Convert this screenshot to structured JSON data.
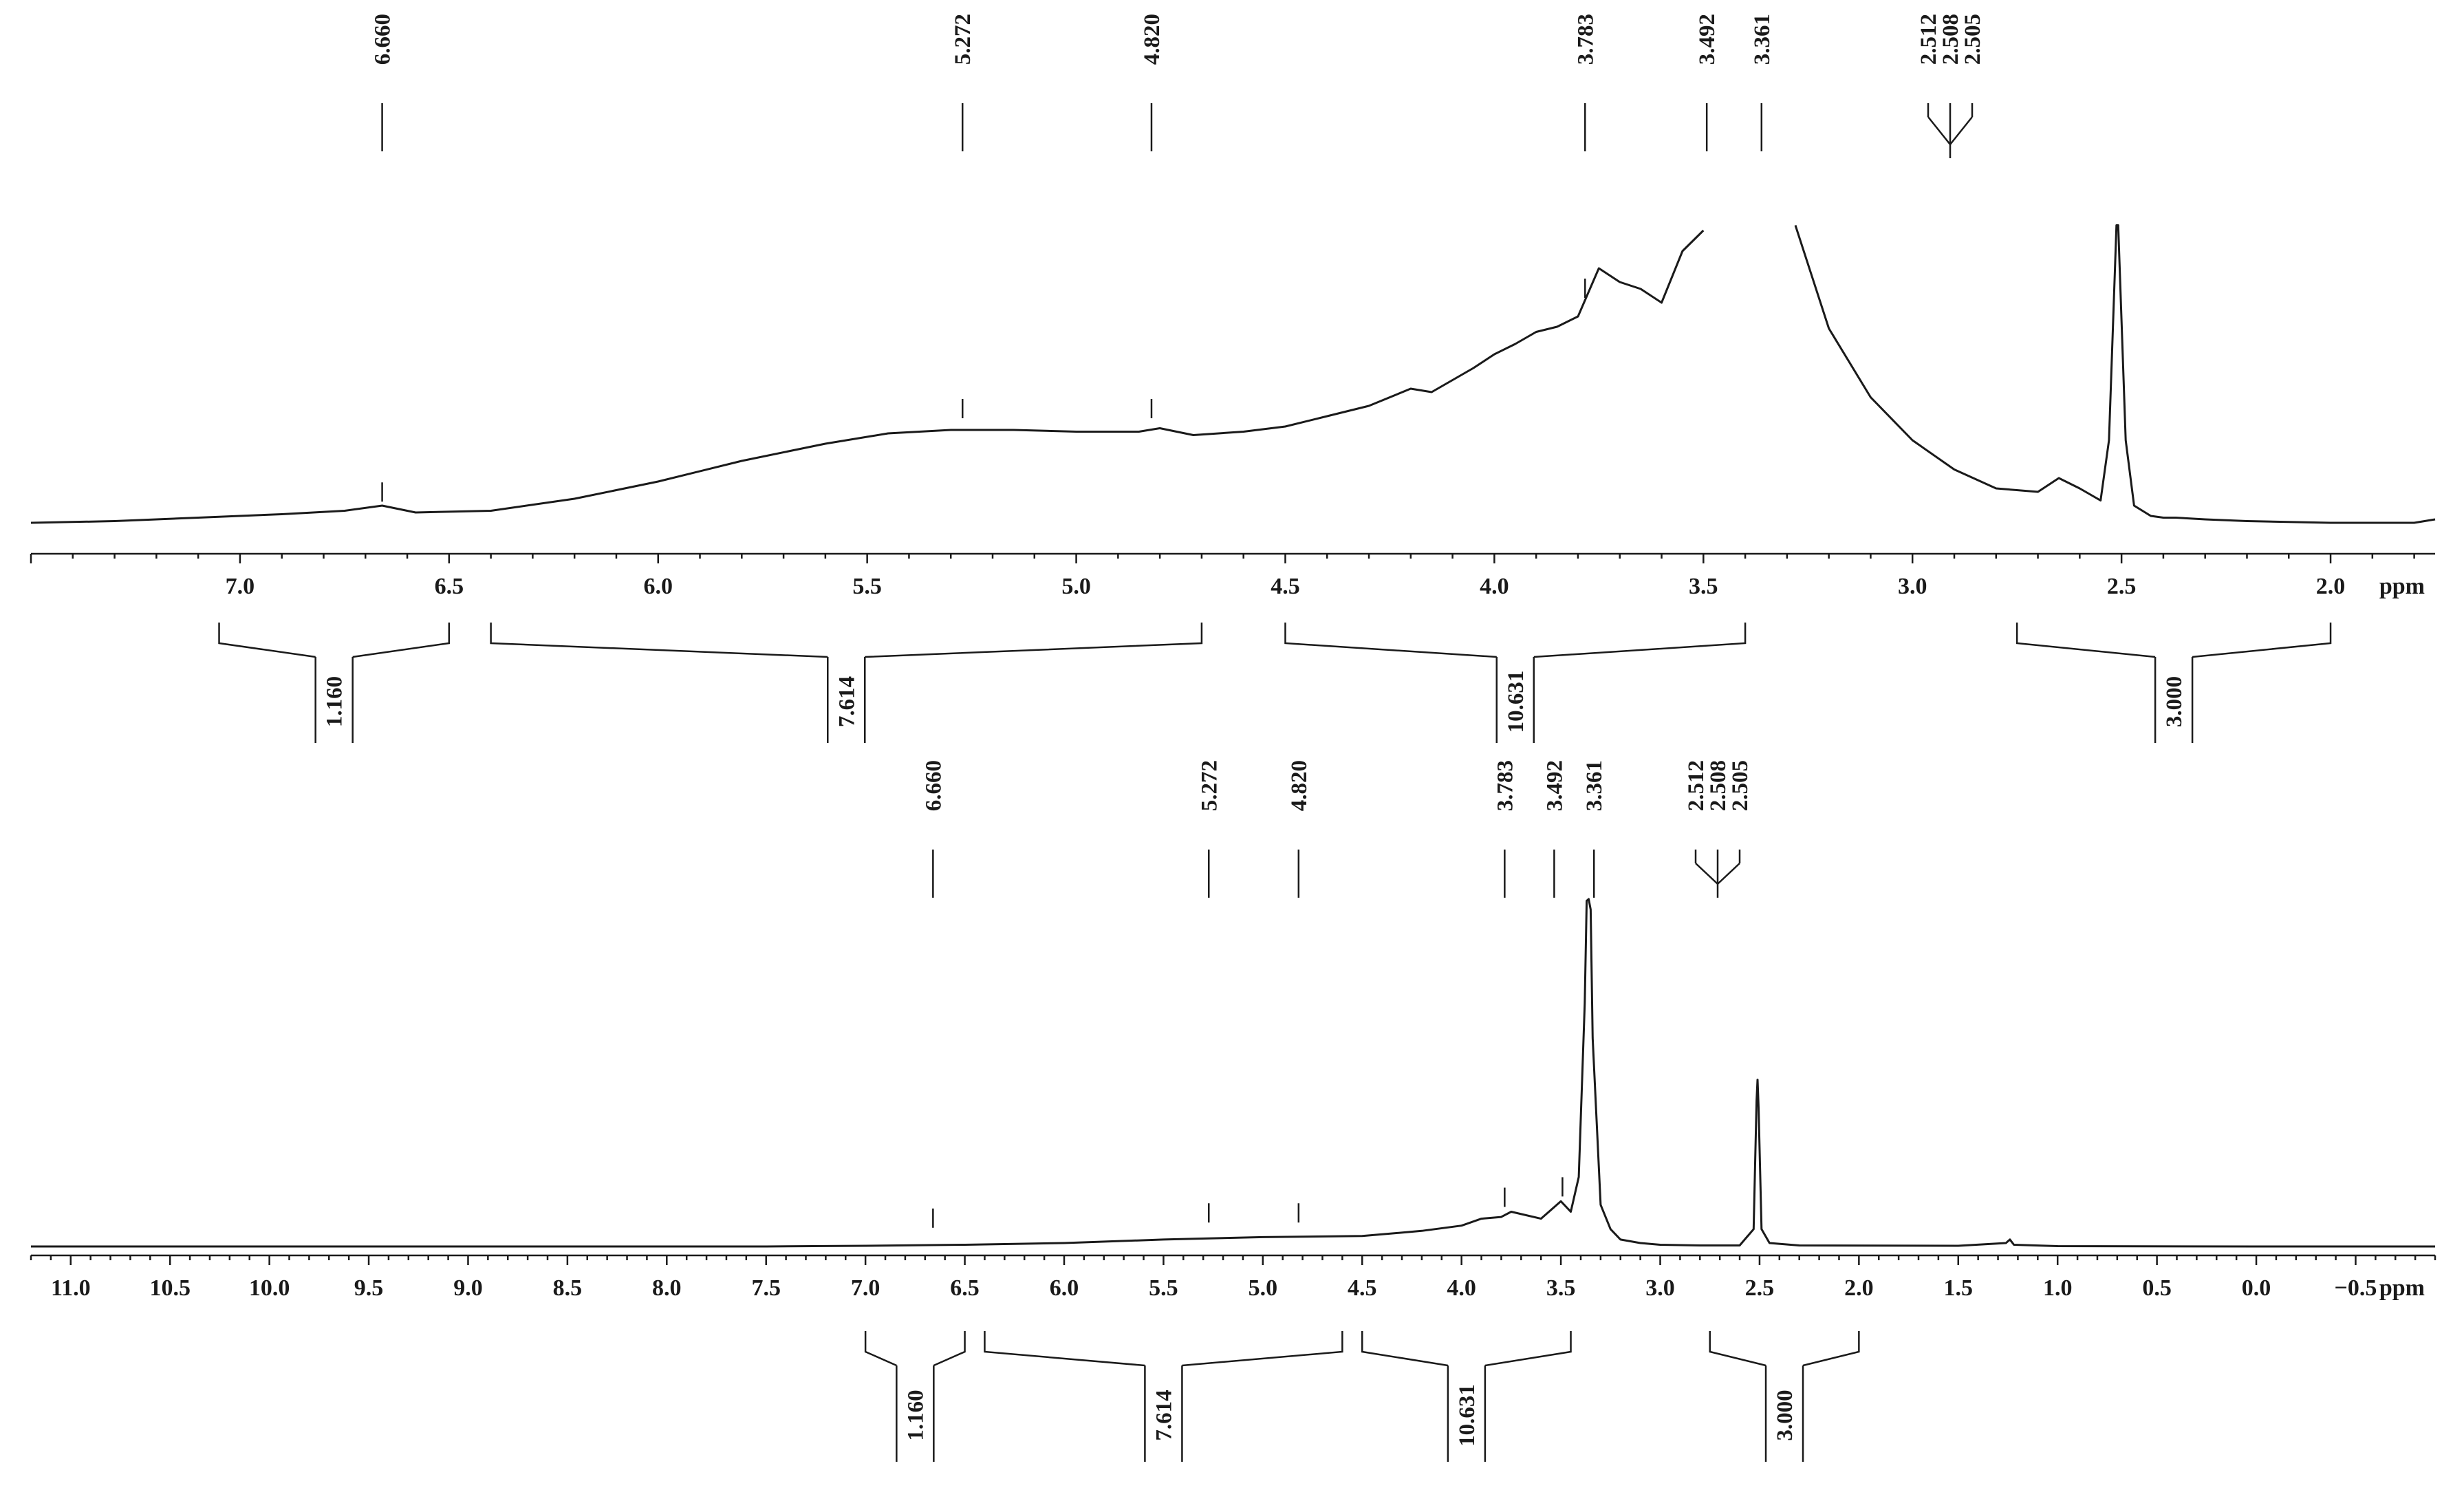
{
  "chart_data": [
    {
      "type": "line",
      "xlabel": "ppm",
      "xlim": [
        7.5,
        1.75
      ],
      "x_reversed": true,
      "x_ticks": [
        "7.0",
        "6.5",
        "6.0",
        "5.5",
        "5.0",
        "4.5",
        "4.0",
        "3.5",
        "3.0",
        "2.5",
        "2.0"
      ],
      "peak_labels": [
        "6.660",
        "5.272",
        "4.820",
        "3.783",
        "3.492",
        "3.361",
        "2.512",
        "2.508",
        "2.505"
      ],
      "integrals": [
        {
          "from": 7.05,
          "to": 6.5,
          "value": "1.160"
        },
        {
          "from": 6.4,
          "to": 4.7,
          "value": "7.614"
        },
        {
          "from": 4.5,
          "to": 3.4,
          "value": "10.631"
        },
        {
          "from": 2.75,
          "to": 2.0,
          "value": "3.000"
        }
      ],
      "series": [
        {
          "x": [
            7.5,
            7.3,
            7.1,
            6.9,
            6.75,
            6.66,
            6.58,
            6.4,
            6.2,
            6.0,
            5.8,
            5.6,
            5.45,
            5.3,
            5.15,
            5.0,
            4.85,
            4.8,
            4.72,
            4.6,
            4.5,
            4.4,
            4.3,
            4.2,
            4.15,
            4.05,
            4.0,
            3.95,
            3.9,
            3.85,
            3.8,
            3.75,
            3.7,
            3.65,
            3.6,
            3.55,
            3.5
          ],
          "y": [
            0.02,
            0.03,
            0.05,
            0.07,
            0.09,
            0.12,
            0.08,
            0.09,
            0.16,
            0.26,
            0.38,
            0.48,
            0.54,
            0.56,
            0.56,
            0.55,
            0.55,
            0.57,
            0.53,
            0.55,
            0.58,
            0.64,
            0.7,
            0.8,
            0.78,
            0.92,
            1.0,
            1.06,
            1.13,
            1.16,
            1.22,
            1.5,
            1.42,
            1.38,
            1.3,
            1.6,
            1.72
          ]
        },
        {
          "x": [
            3.28,
            3.2,
            3.1,
            3.0,
            2.9,
            2.8,
            2.7,
            2.65,
            2.6,
            2.55,
            2.53,
            2.512,
            2.508,
            2.49,
            2.47,
            2.43,
            2.4,
            2.37,
            2.3,
            2.2,
            2.0,
            1.9,
            1.8,
            1.75
          ],
          "y": [
            1.75,
            1.15,
            0.75,
            0.5,
            0.33,
            0.22,
            0.2,
            0.28,
            0.22,
            0.15,
            0.5,
            1.75,
            1.75,
            0.5,
            0.12,
            0.06,
            0.05,
            0.05,
            0.04,
            0.03,
            0.02,
            0.02,
            0.02,
            0.04
          ]
        }
      ]
    },
    {
      "type": "line",
      "xlabel": "ppm",
      "xlim": [
        11.2,
        -0.9
      ],
      "x_reversed": true,
      "x_ticks": [
        "11.0",
        "10.5",
        "10.0",
        "9.5",
        "9.0",
        "8.5",
        "8.0",
        "7.5",
        "7.0",
        "6.5",
        "6.0",
        "5.5",
        "5.0",
        "4.5",
        "4.0",
        "3.5",
        "3.0",
        "2.5",
        "2.0",
        "1.5",
        "1.0",
        "0.5",
        "0.0",
        "−0.5"
      ],
      "peak_labels": [
        "6.660",
        "5.272",
        "4.820",
        "3.783",
        "3.492",
        "3.361",
        "2.512",
        "2.508",
        "2.505"
      ],
      "integrals": [
        {
          "from": 7.0,
          "to": 6.5,
          "value": "1.160"
        },
        {
          "from": 6.4,
          "to": 4.6,
          "value": "7.614"
        },
        {
          "from": 4.5,
          "to": 3.45,
          "value": "10.631"
        },
        {
          "from": 2.75,
          "to": 2.0,
          "value": "3.000"
        }
      ],
      "series": [
        {
          "x": [
            11.2,
            9.0,
            7.5,
            7.0,
            6.5,
            6.0,
            5.5,
            5.0,
            4.5,
            4.2,
            4.0,
            3.9,
            3.8,
            3.75,
            3.6,
            3.5,
            3.45,
            3.41,
            3.38,
            3.37,
            3.36,
            3.35,
            3.34,
            3.3,
            3.25,
            3.2,
            3.1,
            3.0,
            2.8,
            2.6,
            2.53,
            2.515,
            2.51,
            2.505,
            2.49,
            2.45,
            2.3,
            1.5,
            1.26,
            1.24,
            1.22,
            1.0,
            0.0,
            -0.9
          ],
          "y": [
            0.0,
            0.0,
            0.0,
            0.002,
            0.005,
            0.01,
            0.02,
            0.027,
            0.03,
            0.045,
            0.06,
            0.08,
            0.085,
            0.1,
            0.08,
            0.13,
            0.1,
            0.2,
            0.7,
            0.995,
            1.0,
            0.97,
            0.6,
            0.12,
            0.05,
            0.02,
            0.01,
            0.005,
            0.003,
            0.003,
            0.05,
            0.42,
            0.48,
            0.4,
            0.05,
            0.01,
            0.003,
            0.002,
            0.01,
            0.02,
            0.005,
            0.001,
            0.0,
            0.0
          ]
        }
      ]
    }
  ]
}
